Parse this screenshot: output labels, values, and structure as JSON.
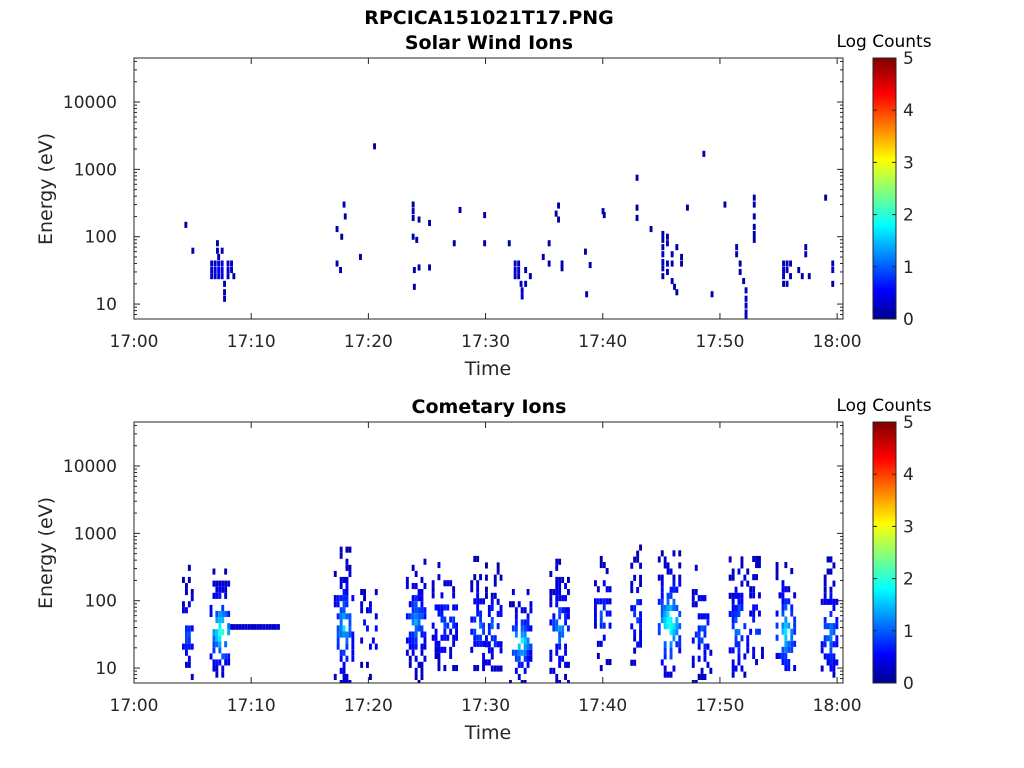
{
  "figure_title": "RPCICA151021T17.PNG",
  "colors": {
    "colormap": "jet",
    "frame": "#262626",
    "background": "#ffffff"
  },
  "chart_data": [
    {
      "type": "heatmap",
      "title": "Solar Wind Ions",
      "xlabel": "Time",
      "ylabel": "Energy (eV)",
      "x_ticks": [
        "17:00",
        "17:10",
        "17:20",
        "17:30",
        "17:40",
        "17:50",
        "18:00"
      ],
      "y_ticks": [
        "10",
        "100",
        "1000",
        "10000"
      ],
      "y_scale": "log",
      "ylim": [
        6,
        45000
      ],
      "xlim_minutes": [
        0,
        60.5
      ],
      "grid": false,
      "colorbar": {
        "label": "Log Counts",
        "ticks": [
          "0",
          "1",
          "2",
          "3",
          "4",
          "5"
        ],
        "range": [
          0,
          5
        ]
      },
      "cells": [
        [
          4.3,
          150,
          0.2
        ],
        [
          4.9,
          62,
          0.2
        ],
        [
          6.5,
          40,
          0.3
        ],
        [
          6.5,
          32,
          0.4
        ],
        [
          6.5,
          26,
          0.4
        ],
        [
          6.8,
          40,
          0.3
        ],
        [
          6.8,
          32,
          0.5
        ],
        [
          6.8,
          26,
          0.4
        ],
        [
          7.0,
          80,
          0.2
        ],
        [
          7.0,
          62,
          0.3
        ],
        [
          7.1,
          50,
          0.3
        ],
        [
          7.1,
          40,
          0.5
        ],
        [
          7.1,
          32,
          0.6
        ],
        [
          7.1,
          26,
          0.4
        ],
        [
          7.4,
          62,
          0.2
        ],
        [
          7.4,
          40,
          0.5
        ],
        [
          7.4,
          32,
          0.6
        ],
        [
          7.4,
          26,
          0.5
        ],
        [
          7.6,
          20,
          0.3
        ],
        [
          7.6,
          15,
          0.2
        ],
        [
          7.6,
          12,
          0.2
        ],
        [
          7.9,
          40,
          0.4
        ],
        [
          7.9,
          32,
          0.4
        ],
        [
          7.9,
          26,
          0.3
        ],
        [
          8.2,
          40,
          0.3
        ],
        [
          8.2,
          32,
          0.3
        ],
        [
          8.4,
          26,
          0.2
        ],
        [
          17.2,
          130,
          0.2
        ],
        [
          17.2,
          40,
          0.2
        ],
        [
          17.5,
          32,
          0.2
        ],
        [
          17.8,
          300,
          0.2
        ],
        [
          17.9,
          200,
          0.2
        ],
        [
          17.6,
          100,
          0.2
        ],
        [
          19.2,
          50,
          0.2
        ],
        [
          20.4,
          2200,
          0.2
        ],
        [
          23.7,
          300,
          0.2
        ],
        [
          23.7,
          240,
          0.2
        ],
        [
          23.7,
          190,
          0.2
        ],
        [
          23.7,
          100,
          0.2
        ],
        [
          24.0,
          90,
          0.2
        ],
        [
          23.8,
          32,
          0.2
        ],
        [
          23.8,
          18,
          0.2
        ],
        [
          24.2,
          180,
          0.2
        ],
        [
          24.2,
          35,
          0.2
        ],
        [
          25.1,
          160,
          0.2
        ],
        [
          25.1,
          35,
          0.2
        ],
        [
          27.2,
          80,
          0.2
        ],
        [
          27.7,
          250,
          0.2
        ],
        [
          29.8,
          80,
          0.2
        ],
        [
          29.8,
          210,
          0.2
        ],
        [
          31.9,
          80,
          0.2
        ],
        [
          32.4,
          40,
          0.3
        ],
        [
          32.4,
          32,
          0.4
        ],
        [
          32.4,
          26,
          0.3
        ],
        [
          32.7,
          40,
          0.3
        ],
        [
          32.7,
          32,
          0.4
        ],
        [
          32.7,
          26,
          0.3
        ],
        [
          32.9,
          20,
          0.3
        ],
        [
          33.0,
          16,
          0.3
        ],
        [
          33.0,
          13,
          0.4
        ],
        [
          33.3,
          32,
          0.2
        ],
        [
          33.3,
          20,
          0.2
        ],
        [
          33.7,
          26,
          0.2
        ],
        [
          34.8,
          50,
          0.2
        ],
        [
          35.3,
          80,
          0.2
        ],
        [
          35.3,
          40,
          0.2
        ],
        [
          35.9,
          220,
          0.2
        ],
        [
          36.1,
          180,
          0.2
        ],
        [
          36.4,
          40,
          0.2
        ],
        [
          36.4,
          34,
          0.2
        ],
        [
          36.1,
          290,
          0.2
        ],
        [
          38.4,
          60,
          0.2
        ],
        [
          38.5,
          14,
          0.2
        ],
        [
          38.8,
          38,
          0.2
        ],
        [
          39.9,
          240,
          0.2
        ],
        [
          40.0,
          210,
          0.2
        ],
        [
          42.8,
          750,
          0.2
        ],
        [
          42.8,
          270,
          0.2
        ],
        [
          42.8,
          190,
          0.2
        ],
        [
          44.0,
          130,
          0.2
        ],
        [
          45.0,
          110,
          0.2
        ],
        [
          45.0,
          90,
          0.2
        ],
        [
          45.0,
          70,
          0.2
        ],
        [
          45.0,
          55,
          0.3
        ],
        [
          45.0,
          42,
          0.4
        ],
        [
          45.0,
          34,
          0.3
        ],
        [
          45.0,
          26,
          0.2
        ],
        [
          45.4,
          100,
          0.2
        ],
        [
          45.4,
          80,
          0.3
        ],
        [
          45.4,
          40,
          0.4
        ],
        [
          45.4,
          30,
          0.3
        ],
        [
          45.8,
          55,
          0.3
        ],
        [
          45.8,
          40,
          0.2
        ],
        [
          45.8,
          22,
          0.2
        ],
        [
          46.0,
          18,
          0.2
        ],
        [
          46.2,
          70,
          0.2
        ],
        [
          46.2,
          15,
          0.2
        ],
        [
          46.6,
          50,
          0.2
        ],
        [
          46.6,
          40,
          0.2
        ],
        [
          47.1,
          270,
          0.2
        ],
        [
          48.5,
          1700,
          0.2
        ],
        [
          49.2,
          14,
          0.2
        ],
        [
          50.3,
          300,
          0.2
        ],
        [
          51.3,
          70,
          0.3
        ],
        [
          51.3,
          55,
          0.2
        ],
        [
          51.6,
          40,
          0.2
        ],
        [
          51.6,
          30,
          0.2
        ],
        [
          51.9,
          22,
          0.2
        ],
        [
          52.1,
          16,
          0.3
        ],
        [
          52.1,
          12,
          0.3
        ],
        [
          52.1,
          9.5,
          0.3
        ],
        [
          52.1,
          7.5,
          0.3
        ],
        [
          52.1,
          6.3,
          0.3
        ],
        [
          52.8,
          380,
          0.2
        ],
        [
          52.8,
          300,
          0.2
        ],
        [
          52.8,
          200,
          0.2
        ],
        [
          52.8,
          140,
          0.2
        ],
        [
          52.8,
          110,
          0.2
        ],
        [
          52.8,
          90,
          0.2
        ],
        [
          55.3,
          40,
          0.3
        ],
        [
          55.3,
          32,
          0.3
        ],
        [
          55.3,
          26,
          0.3
        ],
        [
          55.3,
          20,
          0.2
        ],
        [
          55.6,
          40,
          0.3
        ],
        [
          55.6,
          32,
          0.3
        ],
        [
          55.6,
          20,
          0.2
        ],
        [
          55.9,
          40,
          0.3
        ],
        [
          55.9,
          26,
          0.2
        ],
        [
          56.6,
          32,
          0.2
        ],
        [
          56.9,
          26,
          0.2
        ],
        [
          57.2,
          70,
          0.2
        ],
        [
          57.2,
          55,
          0.2
        ],
        [
          57.5,
          26,
          0.2
        ],
        [
          58.9,
          380,
          0.2
        ],
        [
          59.5,
          40,
          0.3
        ],
        [
          59.5,
          32,
          0.3
        ],
        [
          59.5,
          20,
          0.2
        ]
      ]
    },
    {
      "type": "heatmap",
      "title": "Cometary Ions",
      "xlabel": "Time",
      "ylabel": "Energy (eV)",
      "x_ticks": [
        "17:00",
        "17:10",
        "17:20",
        "17:30",
        "17:40",
        "17:50",
        "18:00"
      ],
      "y_ticks": [
        "10",
        "100",
        "1000",
        "10000"
      ],
      "y_scale": "log",
      "ylim": [
        6,
        45000
      ],
      "xlim_minutes": [
        0,
        60.5
      ],
      "grid": false,
      "colorbar": {
        "label": "Log Counts",
        "ticks": [
          "0",
          "1",
          "2",
          "3",
          "4",
          "5"
        ],
        "range": [
          0,
          5
        ]
      },
      "bursts": [
        {
          "t": 4.5,
          "w": 0.8,
          "lo": 6,
          "hi": 450,
          "peak": 0.8,
          "pe": 30,
          "density": 0.7
        },
        {
          "t": 7.3,
          "w": 1.7,
          "lo": 8,
          "hi": 300,
          "peak": 2.0,
          "pe": 35,
          "density": 0.9
        },
        {
          "t": 17.8,
          "w": 1.5,
          "lo": 6,
          "hi": 600,
          "peak": 1.4,
          "pe": 40,
          "density": 0.8
        },
        {
          "t": 20.0,
          "w": 1.4,
          "lo": 6,
          "hi": 150,
          "peak": 0.6,
          "pe": 40,
          "density": 0.5
        },
        {
          "t": 24.0,
          "w": 1.6,
          "lo": 6,
          "hi": 500,
          "peak": 1.2,
          "pe": 50,
          "density": 0.8
        },
        {
          "t": 26.5,
          "w": 2.2,
          "lo": 10,
          "hi": 500,
          "peak": 0.8,
          "pe": 50,
          "density": 0.65
        },
        {
          "t": 29.3,
          "w": 1.2,
          "lo": 10,
          "hi": 450,
          "peak": 1.0,
          "pe": 40,
          "density": 0.7
        },
        {
          "t": 30.6,
          "w": 1.3,
          "lo": 8,
          "hi": 400,
          "peak": 0.9,
          "pe": 40,
          "density": 0.6
        },
        {
          "t": 32.9,
          "w": 1.8,
          "lo": 6,
          "hi": 150,
          "peak": 1.7,
          "pe": 25,
          "density": 0.85
        },
        {
          "t": 36.2,
          "w": 1.5,
          "lo": 6,
          "hi": 450,
          "peak": 1.1,
          "pe": 40,
          "density": 0.75
        },
        {
          "t": 39.9,
          "w": 1.3,
          "lo": 10,
          "hi": 500,
          "peak": 0.9,
          "pe": 60,
          "density": 0.7
        },
        {
          "t": 42.8,
          "w": 0.9,
          "lo": 12,
          "hi": 800,
          "peak": 0.8,
          "pe": 60,
          "density": 0.6
        },
        {
          "t": 45.6,
          "w": 1.8,
          "lo": 8,
          "hi": 600,
          "peak": 2.0,
          "pe": 45,
          "density": 0.85
        },
        {
          "t": 48.4,
          "w": 1.6,
          "lo": 6,
          "hi": 400,
          "peak": 0.8,
          "pe": 35,
          "density": 0.6
        },
        {
          "t": 51.5,
          "w": 1.5,
          "lo": 8,
          "hi": 500,
          "peak": 1.1,
          "pe": 40,
          "density": 0.75
        },
        {
          "t": 53.0,
          "w": 1.0,
          "lo": 10,
          "hi": 450,
          "peak": 0.8,
          "pe": 40,
          "density": 0.6
        },
        {
          "t": 55.5,
          "w": 1.5,
          "lo": 10,
          "hi": 450,
          "peak": 1.6,
          "pe": 35,
          "density": 0.8
        },
        {
          "t": 59.3,
          "w": 1.4,
          "lo": 8,
          "hi": 450,
          "peak": 1.1,
          "pe": 35,
          "density": 0.75
        }
      ],
      "band": {
        "t0": 8.2,
        "t1": 12.2,
        "lo": 37,
        "hi": 45,
        "value": 0.4
      }
    }
  ]
}
